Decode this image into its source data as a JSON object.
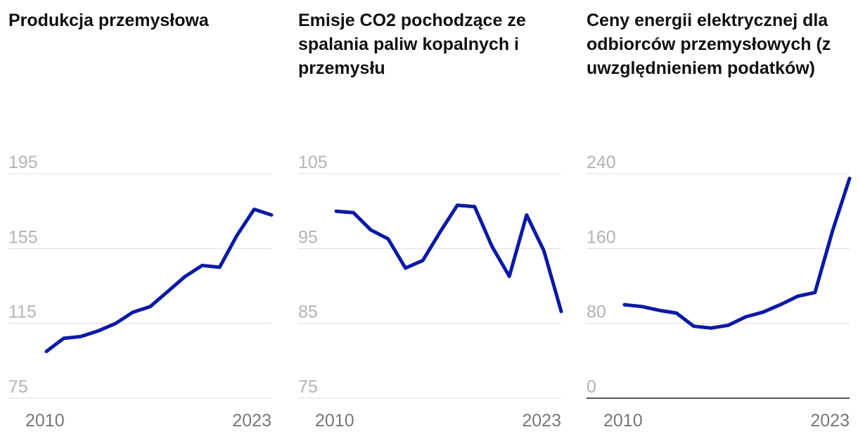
{
  "colors": {
    "line": "#0a1aa6",
    "grid": "#dddddd",
    "baseline": "#222222",
    "ytick": "#b3b3b3",
    "xtick": "#777777",
    "title": "#111111"
  },
  "chart_data": [
    {
      "type": "line",
      "title": "Produkcja przemysłowa",
      "x": [
        2010,
        2011,
        2012,
        2013,
        2014,
        2015,
        2016,
        2017,
        2018,
        2019,
        2020,
        2021,
        2022,
        2023
      ],
      "values": [
        100,
        107,
        108,
        111,
        115,
        121,
        124,
        132,
        140,
        146,
        145,
        162,
        176,
        173
      ],
      "ylim": [
        75,
        195
      ],
      "yticks": [
        75,
        115,
        155,
        195
      ],
      "xtick_labels": [
        "2010",
        "2023"
      ],
      "zero_baseline": false
    },
    {
      "type": "line",
      "title": "Emisje CO2 pochodzące ze spalania paliw kopalnych i przemysłu",
      "x": [
        2010,
        2011,
        2012,
        2013,
        2014,
        2015,
        2016,
        2017,
        2018,
        2019,
        2020,
        2021,
        2022,
        2023
      ],
      "values": [
        100,
        99.8,
        97.5,
        96.3,
        92.4,
        93.4,
        97.2,
        100.8,
        100.6,
        95.3,
        91.3,
        99.5,
        94.7,
        86.6
      ],
      "ylim": [
        75,
        105
      ],
      "yticks": [
        75,
        85,
        95,
        105
      ],
      "xtick_labels": [
        "2010",
        "2023"
      ],
      "zero_baseline": false
    },
    {
      "type": "line",
      "title": "Ceny energii elektrycznej dla odbiorców przemysłowych (z uwzględnieniem podatków)",
      "x": [
        2010,
        2011,
        2012,
        2013,
        2014,
        2015,
        2016,
        2017,
        2018,
        2019,
        2020,
        2021,
        2022,
        2023
      ],
      "values": [
        100,
        98,
        94,
        91,
        77,
        75,
        78,
        87,
        92,
        100,
        109,
        113,
        178,
        235
      ],
      "ylim": [
        0,
        240
      ],
      "yticks": [
        0,
        80,
        160,
        240
      ],
      "xtick_labels": [
        "2010",
        "2023"
      ],
      "zero_baseline": true
    }
  ]
}
